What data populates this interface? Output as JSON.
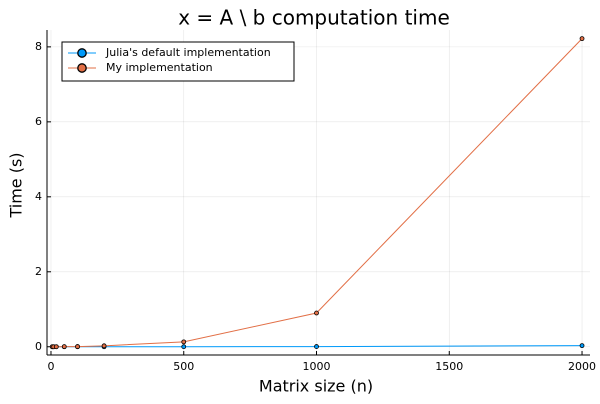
{
  "chart_data": {
    "type": "line",
    "title": "x = A \\ b computation time",
    "xlabel": "Matrix size (n)",
    "ylabel": "Time (s)",
    "xlim": [
      -15,
      2030
    ],
    "ylim": [
      -0.22,
      8.45
    ],
    "xticks": [
      0,
      500,
      1000,
      1500,
      2000
    ],
    "xtick_labels": [
      "0",
      "500",
      "1000",
      "1500",
      "2000"
    ],
    "yticks": [
      0,
      2,
      4,
      6,
      8
    ],
    "ytick_labels": [
      "0",
      "2",
      "4",
      "6",
      "8"
    ],
    "grid": true,
    "legend_position": "top-left",
    "series": [
      {
        "name": "Julia's default implementation",
        "color": "#009AFA",
        "x": [
          5,
          10,
          20,
          50,
          100,
          200,
          500,
          1000,
          2000
        ],
        "y": [
          0,
          0,
          0,
          0,
          0,
          0,
          0.001,
          0.005,
          0.03
        ]
      },
      {
        "name": "My implementation",
        "color": "#E26F46",
        "x": [
          5,
          10,
          20,
          50,
          100,
          200,
          500,
          1000,
          2000
        ],
        "y": [
          0,
          0,
          0.001,
          0.003,
          0.005,
          0.025,
          0.13,
          0.9,
          8.22
        ]
      }
    ]
  }
}
